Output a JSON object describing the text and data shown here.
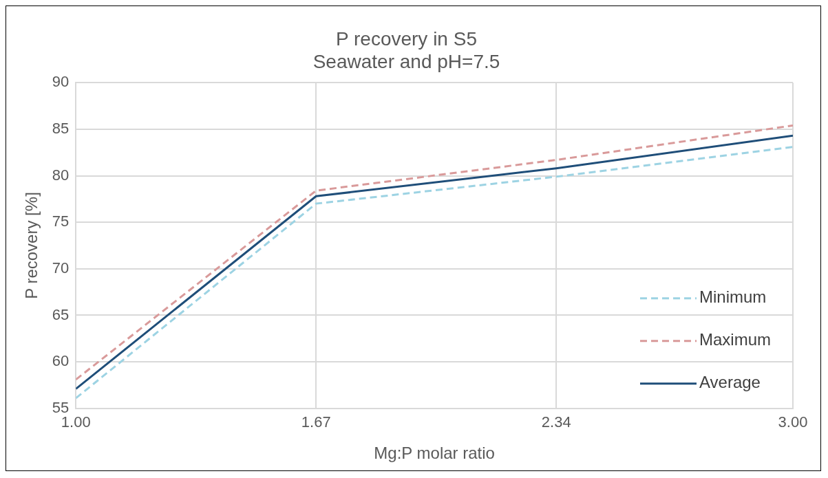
{
  "chart_data": {
    "type": "line",
    "title": [
      "P recovery in S5",
      "Seawater and pH=7.5"
    ],
    "xlabel": "Mg:P molar ratio",
    "ylabel": "P recovery [%]",
    "x": [
      1.0,
      1.67,
      2.34,
      3.0
    ],
    "series": [
      {
        "name": "Minimum",
        "color": "#9dd3e3",
        "line_style": "dashed",
        "values": [
          56.1,
          77.0,
          79.9,
          83.1
        ]
      },
      {
        "name": "Maximum",
        "color": "#d99a9a",
        "line_style": "dashed",
        "values": [
          58.1,
          78.4,
          81.7,
          85.4
        ]
      },
      {
        "name": "Average",
        "color": "#1f4e79",
        "line_style": "solid",
        "values": [
          57.1,
          77.8,
          80.8,
          84.3
        ]
      }
    ],
    "xlim": [
      1.0,
      3.0
    ],
    "xticks": [
      {
        "value": 1.0,
        "label": "1.00"
      },
      {
        "value": 1.67,
        "label": "1.67"
      },
      {
        "value": 2.34,
        "label": "2.34"
      },
      {
        "value": 3.0,
        "label": "3.00"
      }
    ],
    "ylim": [
      55,
      90
    ],
    "yticks": [
      55,
      60,
      65,
      70,
      75,
      80,
      85,
      90
    ],
    "grid": true,
    "legend": "bottom right",
    "marker": "none"
  }
}
